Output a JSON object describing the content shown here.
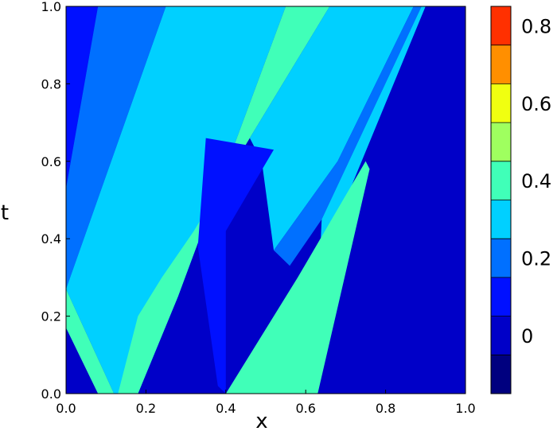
{
  "chart_data": {
    "type": "heatmap",
    "title": "",
    "xlabel": "x",
    "ylabel": "t",
    "xlim": [
      0.0,
      1.0
    ],
    "ylim": [
      0.0,
      1.0
    ],
    "x_ticks": [
      "0.0",
      "0.2",
      "0.4",
      "0.6",
      "0.8",
      "1.0"
    ],
    "y_ticks": [
      "0.0",
      "0.2",
      "0.4",
      "0.6",
      "0.8",
      "1.0"
    ],
    "colorbar": {
      "levels": [
        -0.1,
        0.0,
        0.1,
        0.2,
        0.3,
        0.4,
        0.5,
        0.6,
        0.7,
        0.8,
        0.9
      ],
      "colors": [
        "#00007f",
        "#0000c8",
        "#0010ff",
        "#0070ff",
        "#00d0ff",
        "#40ffb8",
        "#9fff5f",
        "#f0ff10",
        "#ff8f00",
        "#ff3000"
      ],
      "tick_labels": [
        "0",
        "0.2",
        "0.4",
        "0.6",
        "0.8"
      ],
      "tick_values": [
        0.0,
        0.2,
        0.4,
        0.6,
        0.8
      ]
    },
    "regions": [
      {
        "value_band": [
          0.0,
          0.1
        ],
        "polygon": [
          [
            0.0,
            0.0
          ],
          [
            1.0,
            0.0
          ],
          [
            1.0,
            1.0
          ],
          [
            0.0,
            1.0
          ]
        ]
      },
      {
        "value_band": [
          0.1,
          0.2
        ],
        "polygon": [
          [
            0.0,
            1.0
          ],
          [
            0.08,
            1.0
          ],
          [
            0.0,
            0.53
          ]
        ]
      },
      {
        "value_band": [
          0.2,
          0.3
        ],
        "polygon": [
          [
            0.08,
            1.0
          ],
          [
            0.25,
            1.0
          ],
          [
            0.0,
            0.27
          ],
          [
            0.0,
            0.53
          ]
        ]
      },
      {
        "value_band": [
          0.3,
          0.4
        ],
        "polygon": [
          [
            0.25,
            1.0
          ],
          [
            0.55,
            1.0
          ],
          [
            0.28,
            0.25
          ],
          [
            0.18,
            0.0
          ],
          [
            0.12,
            0.0
          ],
          [
            0.0,
            0.27
          ]
        ]
      },
      {
        "value_band": [
          0.4,
          0.5
        ],
        "polygon": [
          [
            0.55,
            1.0
          ],
          [
            0.66,
            1.0
          ],
          [
            0.46,
            0.66
          ],
          [
            0.32,
            0.42
          ],
          [
            0.24,
            0.3
          ],
          [
            0.18,
            0.2
          ],
          [
            0.13,
            0.0
          ],
          [
            0.08,
            0.0
          ],
          [
            0.0,
            0.17
          ],
          [
            0.0,
            0.27
          ],
          [
            0.12,
            0.0
          ],
          [
            0.18,
            0.0
          ],
          [
            0.28,
            0.25
          ]
        ]
      },
      {
        "value_band": [
          0.3,
          0.4
        ],
        "polygon": [
          [
            0.66,
            1.0
          ],
          [
            0.87,
            1.0
          ],
          [
            0.68,
            0.6
          ],
          [
            0.52,
            0.37
          ],
          [
            0.49,
            0.6
          ],
          [
            0.46,
            0.66
          ]
        ]
      },
      {
        "value_band": [
          0.2,
          0.3
        ],
        "polygon": [
          [
            0.87,
            1.0
          ],
          [
            0.89,
            1.0
          ],
          [
            0.64,
            0.45
          ],
          [
            0.56,
            0.33
          ],
          [
            0.52,
            0.37
          ],
          [
            0.68,
            0.6
          ]
        ]
      },
      {
        "value_band": [
          0.3,
          0.4
        ],
        "polygon": [
          [
            0.89,
            1.0
          ],
          [
            0.9,
            1.0
          ],
          [
            0.58,
            0.2
          ],
          [
            0.59,
            0.0
          ],
          [
            0.62,
            0.0
          ],
          [
            0.64,
            0.45
          ]
        ]
      },
      {
        "value_band": [
          0.4,
          0.5
        ],
        "polygon": [
          [
            0.6,
            0.0
          ],
          [
            0.63,
            0.0
          ],
          [
            0.76,
            0.58
          ],
          [
            0.75,
            0.6
          ],
          [
            0.58,
            0.3
          ],
          [
            0.4,
            0.0
          ]
        ]
      },
      {
        "value_band": [
          0.1,
          0.2
        ],
        "polygon": [
          [
            0.35,
            0.66
          ],
          [
            0.52,
            0.63
          ],
          [
            0.4,
            0.42
          ],
          [
            0.4,
            0.0
          ],
          [
            0.38,
            0.02
          ],
          [
            0.33,
            0.38
          ]
        ]
      }
    ]
  }
}
